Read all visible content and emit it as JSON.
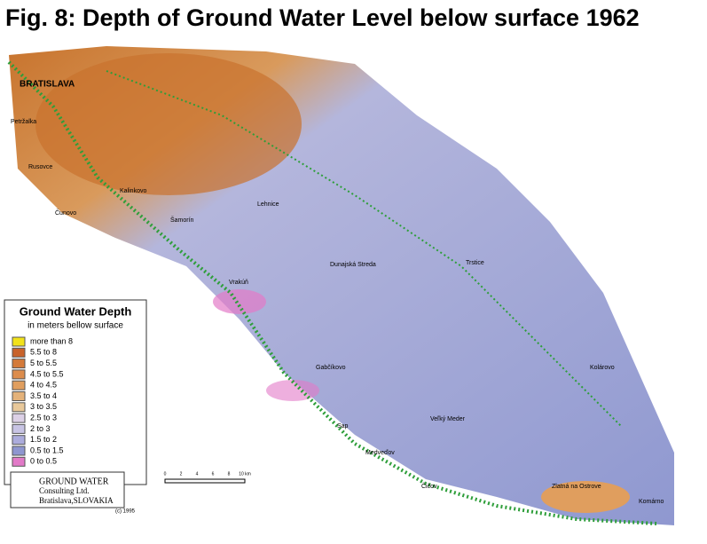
{
  "title": "Fig. 8: Depth of Ground Water Level below surface 1962",
  "legend": {
    "title": "Ground Water Depth",
    "subtitle": "in meters bellow surface",
    "items": [
      {
        "label": "more than 8",
        "color": "#f2e21a"
      },
      {
        "label": "5.5 to 8",
        "color": "#c8622a"
      },
      {
        "label": "5   to 5.5",
        "color": "#d47a3a"
      },
      {
        "label": "4.5 to 5.5",
        "color": "#dc8c4c"
      },
      {
        "label": "4   to 4.5",
        "color": "#e09e5e"
      },
      {
        "label": "3.5 to 4",
        "color": "#e4b27a"
      },
      {
        "label": "3   to 3.5",
        "color": "#e8c89a"
      },
      {
        "label": "2.5 to 3",
        "color": "#dcd0e6"
      },
      {
        "label": "2   to 3",
        "color": "#c8c4e4"
      },
      {
        "label": "1.5 to 2",
        "color": "#acacdc"
      },
      {
        "label": "0.5 to 1.5",
        "color": "#8e96d0"
      },
      {
        "label": "0   to 0.5",
        "color": "#e27ac8"
      }
    ]
  },
  "places": [
    "BRATISLAVA",
    "Petržalka",
    "Rusovce",
    "Čunovo",
    "Kalinkovo",
    "Šamorín",
    "Lehnice",
    "Dunajská Streda",
    "Trstice",
    "Vrakúň",
    "Gabčíkovo",
    "Kolárovo",
    "Veľký Meder",
    "Sap",
    "Medveďov",
    "Čičov",
    "Zlatná na Ostrove",
    "Komárno"
  ],
  "company": [
    "GROUND WATER",
    "Consulting Ltd.",
    "Bratislava,SLOVAKIA"
  ],
  "copyright": "(c) 1995",
  "scale_labels": [
    "0",
    "2",
    "4",
    "6",
    "8",
    "10 km"
  ]
}
